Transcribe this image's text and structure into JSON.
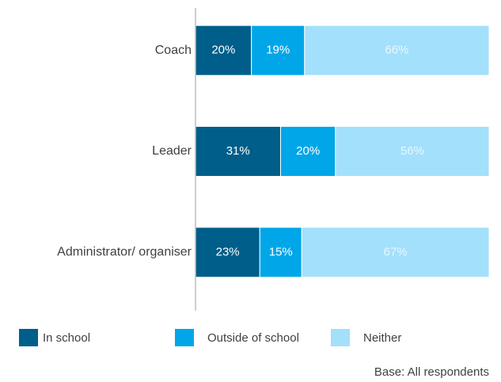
{
  "chart_data": {
    "type": "stacked_bar_horizontal",
    "categories": [
      "Coach",
      "Leader",
      "Administrator/ organiser"
    ],
    "series": [
      {
        "name": "In school",
        "color": "#005e8a",
        "label_color": "#ffffff",
        "values": [
          20,
          31,
          23
        ],
        "value_labels": [
          "20%",
          "31%",
          "23%"
        ]
      },
      {
        "name": "Outside of school",
        "color": "#00a6e8",
        "label_color": "#ffffff",
        "values": [
          19,
          20,
          15
        ],
        "value_labels": [
          "19%",
          "20%",
          "15%"
        ]
      },
      {
        "name": "Neither",
        "color": "#a3e0fb",
        "label_color": "#eaf8fe",
        "values": [
          66,
          56,
          67
        ],
        "value_labels": [
          "66%",
          "56%",
          "67%"
        ]
      }
    ],
    "note": "Base: All respondents"
  }
}
